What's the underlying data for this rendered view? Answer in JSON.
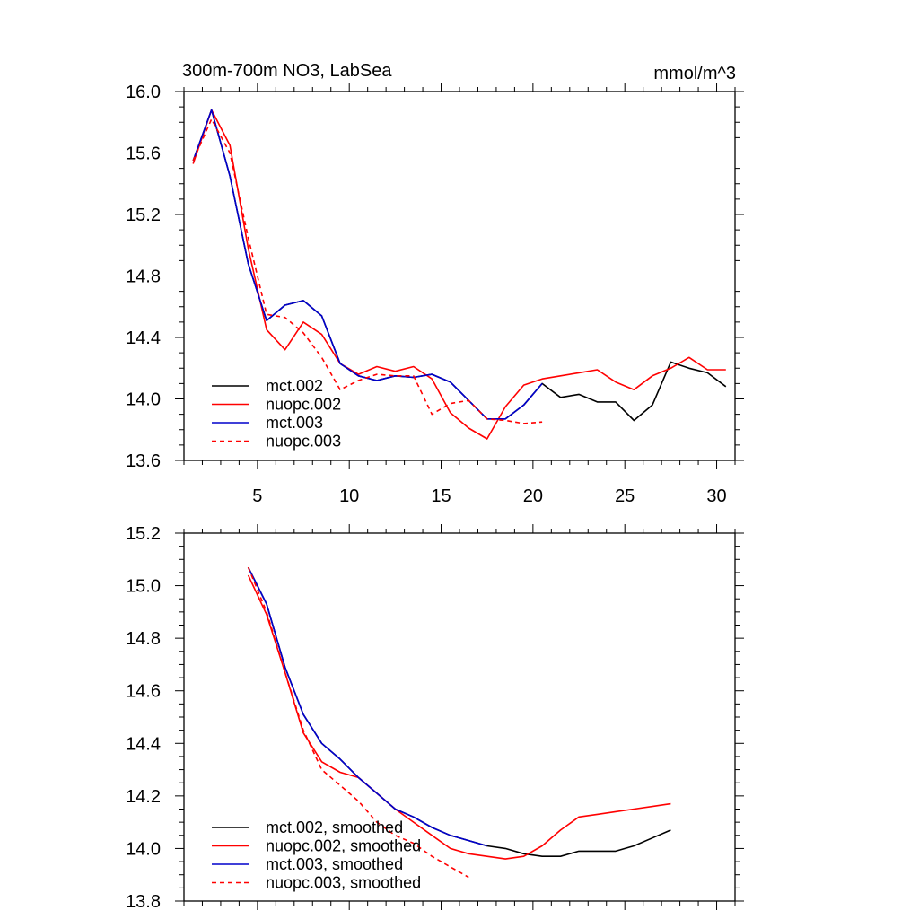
{
  "figure": {
    "title_left": "300m-700m NO3, LabSea",
    "title_right": "mmol/m^3"
  },
  "chart_data": [
    {
      "type": "line",
      "title": "300m-700m NO3, LabSea",
      "units": "mmol/m^3",
      "xlim": [
        1,
        31
      ],
      "ylim": [
        13.6,
        16.0
      ],
      "xticks": [
        5,
        10,
        15,
        20,
        25,
        30
      ],
      "xtick_labels": [
        "5",
        "10",
        "15",
        "20",
        "25",
        "30"
      ],
      "yticks": [
        13.6,
        14.0,
        14.4,
        14.8,
        15.2,
        15.6,
        16.0
      ],
      "ytick_labels": [
        "13.6",
        "14.0",
        "14.4",
        "14.8",
        "15.2",
        "15.6",
        "16.0"
      ],
      "legend_position": "bottom-left",
      "series": [
        {
          "name": "mct.002",
          "color": "#000000",
          "dash": "solid",
          "x": [
            1.5,
            2.5,
            3.5,
            4.5,
            5.5,
            6.5,
            7.5,
            8.5,
            9.5,
            10.5,
            11.5,
            12.5,
            13.5,
            14.5,
            15.5,
            16.5,
            17.5,
            18.5,
            19.5,
            20.5,
            21.5,
            22.5,
            23.5,
            24.5,
            25.5,
            26.5,
            27.5,
            28.5,
            29.5,
            30.5
          ],
          "values": [
            15.55,
            15.88,
            15.45,
            14.88,
            14.51,
            14.61,
            14.64,
            14.54,
            14.23,
            14.15,
            14.12,
            14.15,
            14.14,
            14.16,
            14.11,
            13.99,
            13.87,
            13.87,
            13.96,
            14.1,
            14.01,
            14.03,
            13.98,
            13.98,
            13.86,
            13.96,
            14.24,
            14.2,
            14.17,
            14.08
          ]
        },
        {
          "name": "nuopc.002",
          "color": "#ff0000",
          "dash": "solid",
          "x": [
            1.5,
            2.5,
            3.5,
            4.5,
            5.5,
            6.5,
            7.5,
            8.5,
            9.5,
            10.5,
            11.5,
            12.5,
            13.5,
            14.5,
            15.5,
            16.5,
            17.5,
            18.5,
            19.5,
            20.5,
            21.5,
            22.5,
            23.5,
            24.5,
            25.5,
            26.5,
            27.5,
            28.5,
            29.5,
            30.5
          ],
          "values": [
            15.53,
            15.88,
            15.65,
            14.98,
            14.45,
            14.32,
            14.5,
            14.42,
            14.23,
            14.16,
            14.21,
            14.18,
            14.21,
            14.13,
            13.91,
            13.81,
            13.74,
            13.95,
            14.09,
            14.13,
            14.15,
            14.17,
            14.19,
            14.11,
            14.06,
            14.15,
            14.2,
            14.27,
            14.19,
            14.19
          ]
        },
        {
          "name": "mct.003",
          "color": "#0000cc",
          "dash": "solid",
          "x": [
            1.5,
            2.5,
            3.5,
            4.5,
            5.5,
            6.5,
            7.5,
            8.5,
            9.5,
            10.5,
            11.5,
            12.5,
            13.5,
            14.5,
            15.5,
            16.5,
            17.5,
            18.5,
            19.5,
            20.5
          ],
          "values": [
            15.55,
            15.88,
            15.45,
            14.88,
            14.51,
            14.61,
            14.64,
            14.54,
            14.23,
            14.15,
            14.12,
            14.15,
            14.14,
            14.16,
            14.11,
            13.99,
            13.87,
            13.87,
            13.96,
            14.1
          ]
        },
        {
          "name": "nuopc.003",
          "color": "#ff0000",
          "dash": "dashed",
          "x": [
            1.5,
            2.5,
            3.5,
            4.5,
            5.5,
            6.5,
            7.5,
            8.5,
            9.5,
            10.5,
            11.5,
            12.5,
            13.5,
            14.5,
            15.5,
            16.5,
            17.5,
            18.5,
            19.5,
            20.5
          ],
          "values": [
            15.55,
            15.82,
            15.6,
            15.05,
            14.55,
            14.53,
            14.43,
            14.27,
            14.06,
            14.12,
            14.16,
            14.15,
            14.15,
            13.9,
            13.97,
            13.99,
            13.87,
            13.86,
            13.84,
            13.85
          ]
        }
      ]
    },
    {
      "type": "line",
      "xlim": [
        1,
        31
      ],
      "ylim": [
        13.8,
        15.2
      ],
      "xticks": [
        5,
        10,
        15,
        20,
        25,
        30
      ],
      "yticks": [
        13.8,
        14.0,
        14.2,
        14.4,
        14.6,
        14.8,
        15.0,
        15.2
      ],
      "ytick_labels": [
        "13.8",
        "14.0",
        "14.2",
        "14.4",
        "14.6",
        "14.8",
        "15.0",
        "15.2"
      ],
      "legend_position": "bottom-left",
      "series": [
        {
          "name": "mct.002, smoothed",
          "color": "#000000",
          "dash": "solid",
          "x": [
            4.5,
            5.5,
            6.5,
            7.5,
            8.5,
            9.5,
            10.5,
            11.5,
            12.5,
            13.5,
            14.5,
            15.5,
            16.5,
            17.5,
            18.5,
            19.5,
            20.5,
            21.5,
            22.5,
            23.5,
            24.5,
            25.5,
            26.5,
            27.5
          ],
          "values": [
            15.07,
            14.93,
            14.69,
            14.51,
            14.4,
            14.34,
            14.27,
            14.21,
            14.15,
            14.12,
            14.08,
            14.05,
            14.03,
            14.01,
            14.0,
            13.98,
            13.97,
            13.97,
            13.99,
            13.99,
            13.99,
            14.01,
            14.04,
            14.07
          ]
        },
        {
          "name": "nuopc.002, smoothed",
          "color": "#ff0000",
          "dash": "solid",
          "x": [
            4.5,
            5.5,
            6.5,
            7.5,
            8.5,
            9.5,
            10.5,
            11.5,
            12.5,
            13.5,
            14.5,
            15.5,
            16.5,
            17.5,
            18.5,
            19.5,
            20.5,
            21.5,
            22.5,
            23.5,
            24.5,
            25.5,
            26.5,
            27.5
          ],
          "values": [
            15.04,
            14.89,
            14.67,
            14.44,
            14.33,
            14.29,
            14.27,
            14.21,
            14.15,
            14.1,
            14.05,
            14.0,
            13.98,
            13.97,
            13.96,
            13.97,
            14.01,
            14.07,
            14.12,
            14.13,
            14.14,
            14.15,
            14.16,
            14.17
          ]
        },
        {
          "name": "mct.003, smoothed",
          "color": "#0000cc",
          "dash": "solid",
          "x": [
            4.5,
            5.5,
            6.5,
            7.5,
            8.5,
            9.5,
            10.5,
            11.5,
            12.5,
            13.5,
            14.5,
            15.5,
            16.5,
            17.5
          ],
          "values": [
            15.07,
            14.93,
            14.69,
            14.51,
            14.4,
            14.34,
            14.27,
            14.21,
            14.15,
            14.12,
            14.08,
            14.05,
            14.03,
            14.01
          ]
        },
        {
          "name": "nuopc.003, smoothed",
          "color": "#ff0000",
          "dash": "dashed",
          "x": [
            4.5,
            5.5,
            6.5,
            7.5,
            8.5,
            9.5,
            10.5,
            11.5,
            12.5,
            13.5,
            14.5,
            15.5,
            16.5
          ],
          "values": [
            15.07,
            14.9,
            14.67,
            14.45,
            14.3,
            14.24,
            14.18,
            14.1,
            14.05,
            14.02,
            13.97,
            13.93,
            13.89
          ]
        }
      ]
    }
  ]
}
